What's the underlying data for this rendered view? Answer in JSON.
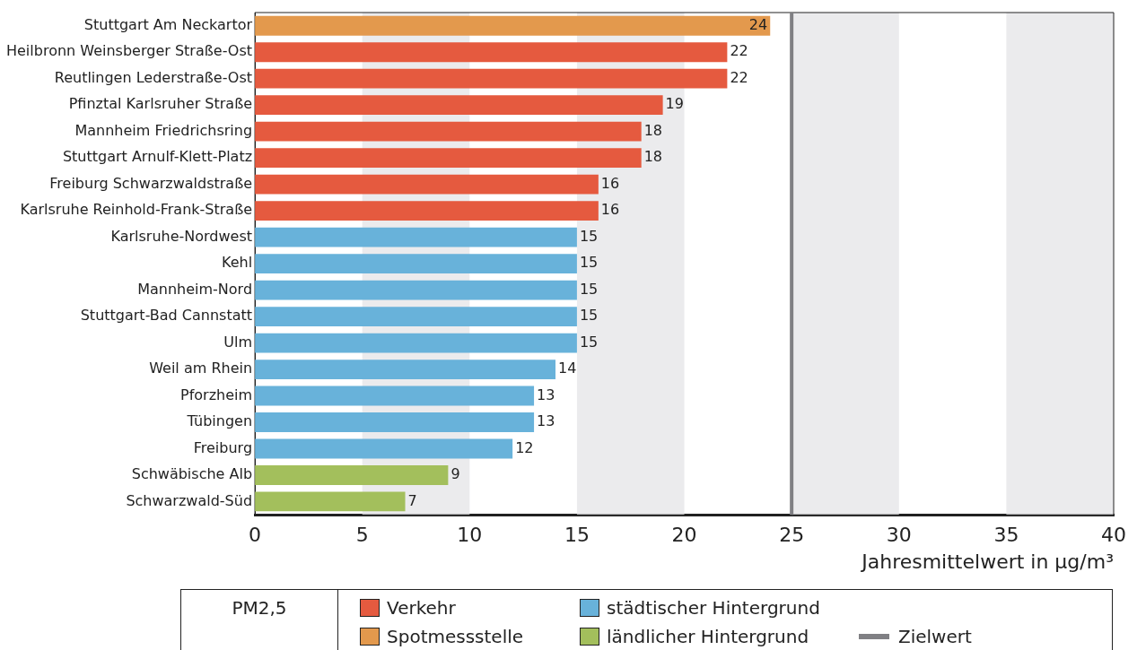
{
  "chart_data": {
    "type": "bar",
    "orientation": "horizontal",
    "stacked": true,
    "xlabel": "Jahresmittelwert in µg/m³",
    "legend_title": "PM2,5",
    "legend": "bottom",
    "data_labels": true,
    "categories": [
      "Stuttgart Am Neckartor",
      "Heilbronn Weinsberger Straße-Ost",
      "Reutlingen Lederstraße-Ost",
      "Pfinztal Karlsruher Straße",
      "Mannheim Friedrichsring",
      "Stuttgart Arnulf-Klett-Platz",
      "Freiburg Schwarzwaldstraße",
      "Karlsruhe Reinhold-Frank-Straße",
      "Karlsruhe-Nordwest",
      "Kehl",
      "Mannheim-Nord",
      "Stuttgart-Bad Cannstatt",
      "Ulm",
      "Weil am Rhein",
      "Pforzheim",
      "Tübingen",
      "Freiburg",
      "Schwäbische Alb",
      "Schwarzwald-Süd"
    ],
    "series": [
      {
        "name": "Verkehr",
        "color": "#e55a3f",
        "values": [
          null,
          22,
          22,
          19,
          18,
          18,
          16,
          16,
          null,
          null,
          null,
          null,
          null,
          null,
          null,
          null,
          null,
          null,
          null
        ]
      },
      {
        "name": "Spotmessstelle",
        "color": "#e3994d",
        "values": [
          24,
          null,
          null,
          null,
          null,
          null,
          null,
          null,
          null,
          null,
          null,
          null,
          null,
          null,
          null,
          null,
          null,
          null,
          null
        ]
      },
      {
        "name": "städtischer Hintergrund",
        "color": "#68b2da",
        "values": [
          null,
          null,
          null,
          null,
          null,
          null,
          null,
          null,
          15,
          15,
          15,
          15,
          15,
          14,
          13,
          13,
          12,
          null,
          null
        ]
      },
      {
        "name": "ländlicher Hintergrund",
        "color": "#a3bf5c",
        "values": [
          null,
          null,
          null,
          null,
          null,
          null,
          null,
          null,
          null,
          null,
          null,
          null,
          null,
          null,
          null,
          null,
          null,
          9,
          7
        ]
      }
    ],
    "xlim": [
      0,
      40
    ],
    "xticks": [
      0,
      5,
      10,
      15,
      20,
      25,
      30,
      35,
      40
    ],
    "grid": false,
    "bands": [
      {
        "axis": "x",
        "from": 5,
        "to": 10,
        "color": "#ebebed"
      },
      {
        "axis": "x",
        "from": 15,
        "to": 20,
        "color": "#ebebed"
      },
      {
        "axis": "x",
        "from": 25,
        "to": 30,
        "color": "#ebebed"
      },
      {
        "axis": "x",
        "from": 35,
        "to": 40,
        "color": "#ebebed"
      }
    ],
    "ref_lines": [
      {
        "axis": "x",
        "value": 25,
        "label": "Zielwert",
        "color": "#808084"
      }
    ]
  }
}
